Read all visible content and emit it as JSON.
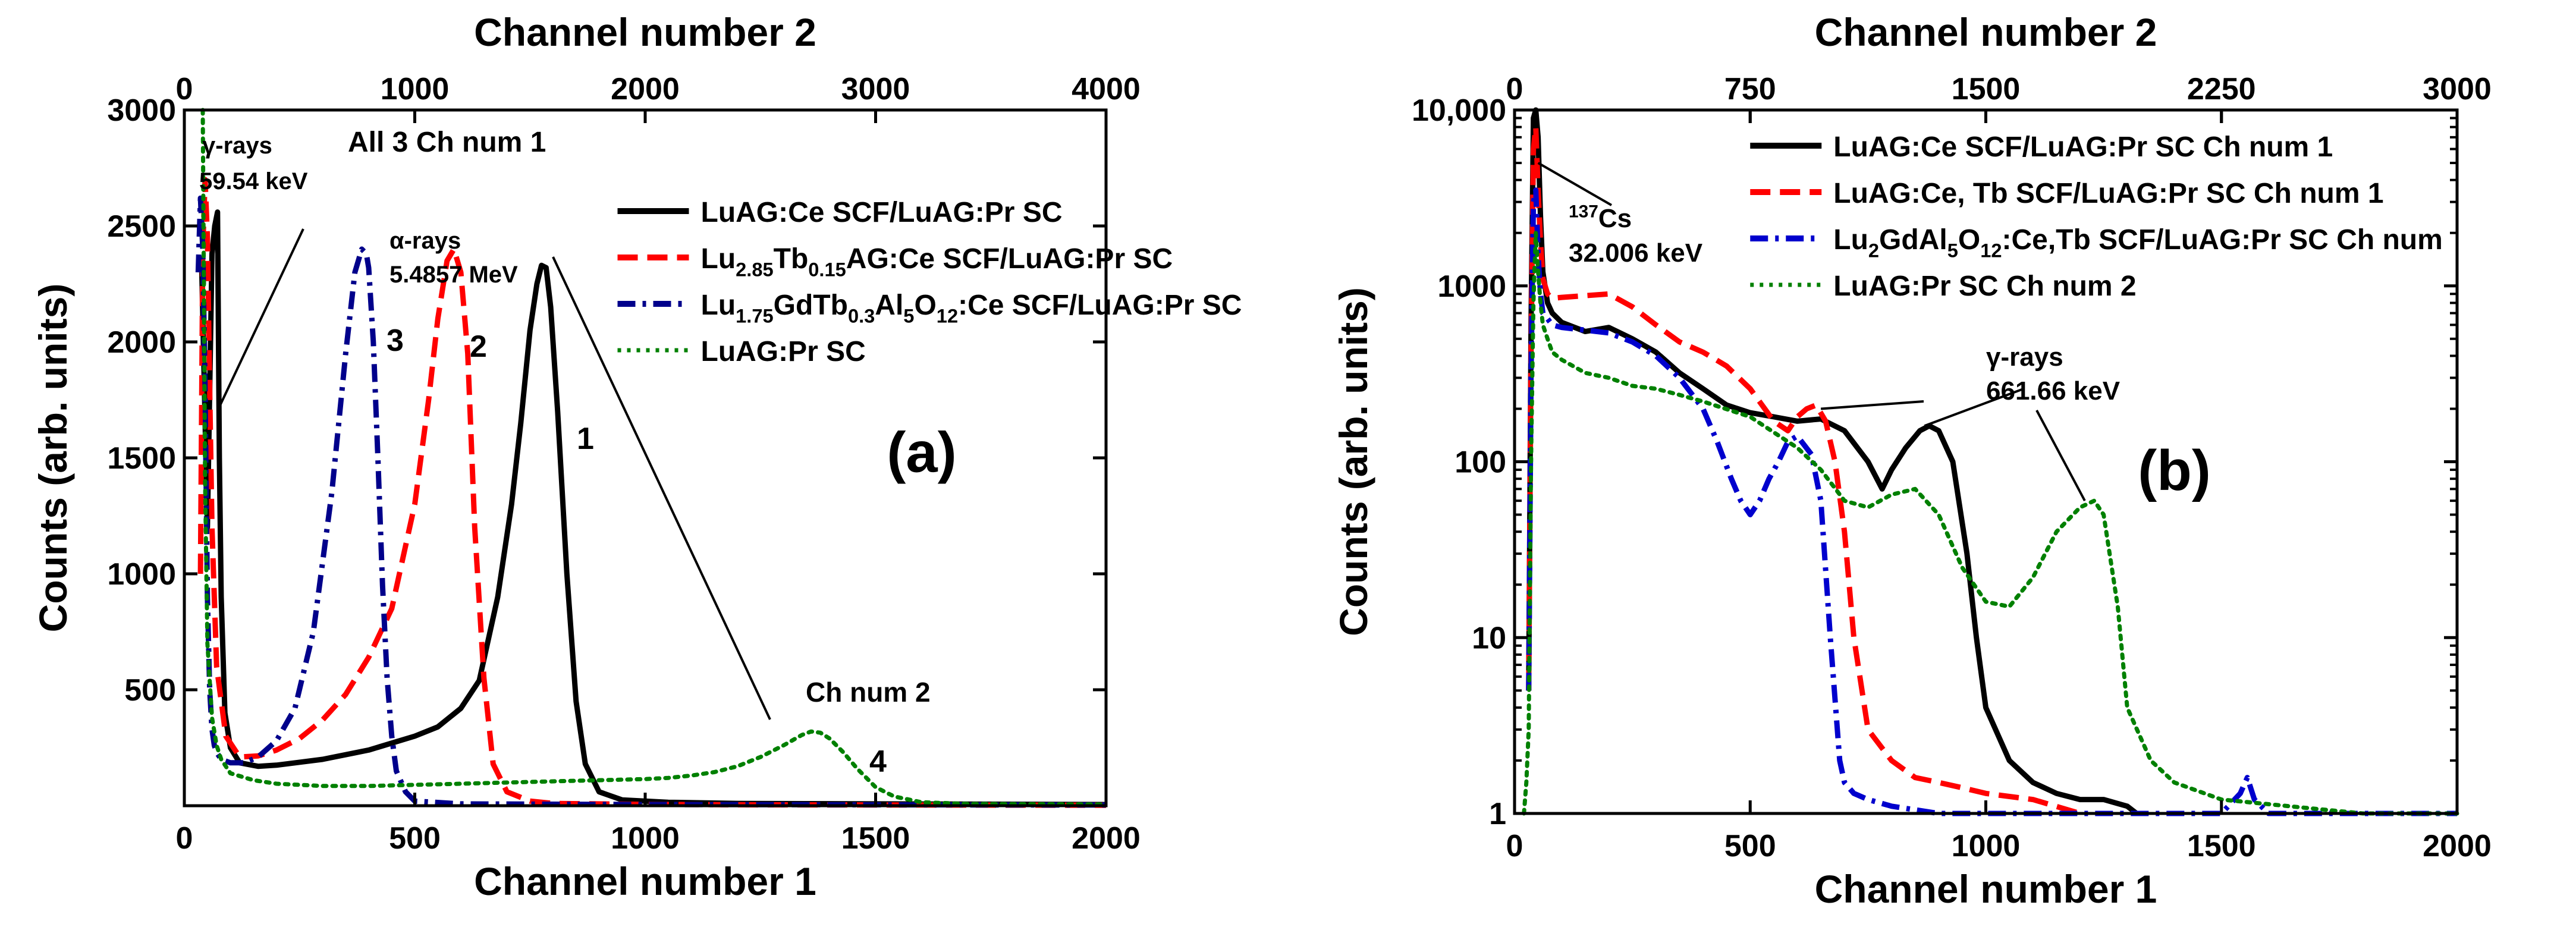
{
  "chart_data": [
    {
      "panel_label": "(a)",
      "type": "line",
      "xlabel": "Channel number 1",
      "x2label": "Channel number 2",
      "ylabel": "Counts (arb. units)",
      "xlim": [
        0,
        2000
      ],
      "x2lim": [
        0,
        4000
      ],
      "ylim": [
        0,
        3000
      ],
      "yscale": "linear",
      "x_ticks": [
        "0",
        "500",
        "1000",
        "1500",
        "2000"
      ],
      "x2_ticks": [
        "0",
        "1000",
        "2000",
        "3000",
        "4000"
      ],
      "y_ticks": [
        "500",
        "1000",
        "1500",
        "2000",
        "2500",
        "3000"
      ],
      "grid": false,
      "legend_position": "top-right",
      "header_text": "All 3 Ch num 1",
      "annotations": {
        "gamma": [
          "γ-rays",
          "59.54 keV"
        ],
        "alpha": [
          "α-rays",
          "5.4857 MeV"
        ],
        "ch2": "Ch num 2",
        "curve_numbers": [
          "1",
          "2",
          "3",
          "4"
        ]
      },
      "series": [
        {
          "name": "LuAG:Ce SCF/LuAG:Pr SC",
          "color": "#000000",
          "style": "solid",
          "curve_number": "1",
          "x": [
            38,
            50,
            60,
            66,
            72,
            76,
            80,
            88,
            100,
            120,
            160,
            200,
            300,
            400,
            500,
            550,
            600,
            640,
            680,
            710,
            730,
            750,
            765,
            775,
            785,
            795,
            810,
            830,
            850,
            870,
            900,
            950,
            1050,
            1200,
            1500,
            2000
          ],
          "y": [
            2300,
            1200,
            2380,
            2500,
            2560,
            1500,
            900,
            400,
            250,
            185,
            170,
            175,
            200,
            240,
            300,
            340,
            420,
            540,
            900,
            1300,
            1650,
            2050,
            2250,
            2330,
            2320,
            2150,
            1700,
            1000,
            450,
            180,
            60,
            25,
            15,
            10,
            8,
            5
          ]
        },
        {
          "name_parts": {
            "pre": "Lu",
            "sub1": "2.85",
            "mid1": "Tb",
            "sub2": "0.15",
            "post": "AG:Ce SCF/LuAG:Pr SC"
          },
          "color": "#ff0000",
          "style": "dash",
          "curve_number": "2",
          "x": [
            35,
            40,
            45,
            50,
            55,
            60,
            70,
            90,
            120,
            160,
            200,
            250,
            300,
            350,
            400,
            450,
            500,
            530,
            550,
            570,
            585,
            600,
            615,
            630,
            650,
            670,
            700,
            750,
            800,
            1000,
            1200,
            1600,
            2000
          ],
          "y": [
            1000,
            2400,
            2700,
            2450,
            1800,
            1200,
            600,
            300,
            210,
            215,
            240,
            290,
            370,
            480,
            640,
            850,
            1300,
            1750,
            2100,
            2350,
            2400,
            2300,
            1950,
            1200,
            550,
            180,
            60,
            20,
            10,
            6,
            4,
            3,
            2
          ]
        },
        {
          "name_parts": {
            "pre": "Lu",
            "sub1": "1.75",
            "mid1": "GdTb",
            "sub2": "0.3",
            "mid2": "Al",
            "sub3": "5",
            "mid3": "O",
            "sub4": "12",
            "post": ":Ce SCF/LuAG:Pr SC"
          },
          "color": "#00008b",
          "style": "dashdot",
          "curve_number": "3",
          "x": [
            30,
            35,
            40,
            45,
            50,
            55,
            60,
            65,
            70,
            80,
            100,
            130,
            160,
            200,
            240,
            280,
            320,
            350,
            370,
            385,
            395,
            400,
            410,
            420,
            430,
            440,
            450,
            460,
            480,
            500,
            600,
            1000,
            2000
          ],
          "y": [
            2300,
            2620,
            2400,
            1800,
            900,
            500,
            330,
            260,
            230,
            200,
            185,
            185,
            210,
            280,
            420,
            750,
            1350,
            1950,
            2300,
            2400,
            2380,
            2320,
            2000,
            1500,
            950,
            550,
            300,
            150,
            60,
            20,
            8,
            5,
            3
          ]
        },
        {
          "name": "LuAG:Pr SC",
          "color": "#008000",
          "style": "dot",
          "curve_number": "4",
          "x": [
            40,
            45,
            50,
            60,
            70,
            80,
            100,
            150,
            200,
            300,
            400,
            500,
            600,
            700,
            800,
            900,
            1000,
            1050,
            1100,
            1150,
            1200,
            1250,
            1300,
            1340,
            1360,
            1380,
            1400,
            1430,
            1460,
            1500,
            1540,
            1600,
            1700,
            2000
          ],
          "y": [
            3000,
            1400,
            700,
            380,
            260,
            200,
            140,
            110,
            95,
            85,
            85,
            90,
            95,
            100,
            105,
            110,
            115,
            120,
            130,
            145,
            170,
            210,
            260,
            305,
            320,
            315,
            290,
            230,
            160,
            80,
            40,
            15,
            8,
            5
          ]
        }
      ]
    },
    {
      "panel_label": "(b)",
      "type": "line",
      "xlabel": "Channel number 1",
      "x2label": "Channel number 2",
      "ylabel": "Counts (arb. units)",
      "xlim": [
        0,
        2000
      ],
      "x2lim": [
        0,
        3000
      ],
      "ylim": [
        1,
        10000
      ],
      "yscale": "log",
      "x_ticks": [
        "0",
        "500",
        "1000",
        "1500",
        "2000"
      ],
      "x2_ticks": [
        "0",
        "750",
        "1500",
        "2250",
        "3000"
      ],
      "y_ticks": [
        "1",
        "10",
        "100",
        "1000",
        "10,000"
      ],
      "grid": false,
      "legend_position": "top-right",
      "annotations": {
        "cs": {
          "superscript": "137",
          "element": "Cs",
          "energy": "32.006 keV"
        },
        "gamma": [
          "γ-rays",
          "661.66 keV"
        ]
      },
      "series": [
        {
          "name": "LuAG:Ce SCF/LuAG:Pr SC Ch num 1",
          "color": "#000000",
          "style": "solid",
          "x": [
            30,
            35,
            40,
            45,
            50,
            55,
            60,
            70,
            80,
            100,
            150,
            200,
            250,
            300,
            350,
            400,
            450,
            500,
            550,
            600,
            650,
            700,
            750,
            780,
            800,
            830,
            860,
            880,
            900,
            930,
            960,
            980,
            1000,
            1050,
            1100,
            1150,
            1200,
            1250,
            1300,
            1320
          ],
          "y": [
            5,
            600,
            9000,
            14000,
            7000,
            2500,
            1200,
            800,
            700,
            620,
            550,
            580,
            500,
            420,
            320,
            260,
            210,
            190,
            180,
            170,
            175,
            150,
            100,
            70,
            90,
            120,
            150,
            160,
            150,
            100,
            30,
            10,
            4,
            2,
            1.5,
            1.3,
            1.2,
            1.2,
            1.1,
            1
          ]
        },
        {
          "name": "LuAG:Ce, Tb SCF/LuAG:Pr SC Ch num 1",
          "color": "#ff0000",
          "style": "dash",
          "x": [
            30,
            35,
            40,
            45,
            50,
            55,
            60,
            70,
            80,
            100,
            150,
            200,
            250,
            300,
            350,
            400,
            450,
            500,
            550,
            580,
            600,
            620,
            640,
            660,
            680,
            700,
            720,
            750,
            800,
            850,
            900,
            950,
            1000,
            1100,
            1200
          ],
          "y": [
            5,
            400,
            6000,
            8000,
            3500,
            1800,
            1100,
            900,
            850,
            860,
            880,
            900,
            760,
            600,
            480,
            420,
            350,
            260,
            170,
            150,
            180,
            200,
            210,
            170,
            100,
            40,
            10,
            3,
            2,
            1.6,
            1.5,
            1.4,
            1.3,
            1.2,
            1
          ]
        },
        {
          "name_parts": {
            "pre": "Lu",
            "sub1": "2",
            "mid1": "GdAl",
            "sub2": "5",
            "mid2": "O",
            "sub3": "12",
            "post": ":Ce,Tb SCF/LuAG:Pr SC Ch num"
          },
          "color": "#0000cd",
          "style": "dashdot",
          "x": [
            30,
            35,
            40,
            45,
            50,
            55,
            60,
            70,
            80,
            100,
            150,
            200,
            250,
            300,
            350,
            400,
            430,
            460,
            480,
            500,
            520,
            540,
            560,
            580,
            600,
            630,
            650,
            670,
            690,
            700,
            720,
            750,
            800,
            900,
            1000,
            1100,
            1200,
            1300,
            1400,
            1500,
            1540,
            1555,
            1570,
            1600,
            1800,
            2000
          ],
          "y": [
            5,
            300,
            3000,
            3500,
            1500,
            900,
            700,
            650,
            600,
            580,
            560,
            540,
            480,
            400,
            300,
            200,
            130,
            80,
            60,
            50,
            60,
            80,
            100,
            130,
            140,
            110,
            60,
            10,
            2,
            1.5,
            1.3,
            1.2,
            1.1,
            1,
            1,
            1,
            1,
            1,
            1,
            1,
            1.3,
            1.6,
            1.2,
            1,
            1,
            1
          ]
        },
        {
          "name": "LuAG:Pr SC Ch num 2",
          "color": "#008000",
          "style": "dot",
          "x": [
            20,
            25,
            30,
            35,
            40,
            45,
            50,
            55,
            60,
            70,
            80,
            100,
            150,
            200,
            250,
            300,
            350,
            400,
            500,
            600,
            650,
            700,
            750,
            800,
            850,
            900,
            950,
            1000,
            1050,
            1100,
            1150,
            1200,
            1230,
            1250,
            1280,
            1300,
            1350,
            1400,
            1500,
            1800,
            2000
          ],
          "y": [
            1,
            1.5,
            3,
            100,
            800,
            2000,
            1200,
            800,
            600,
            500,
            420,
            380,
            320,
            300,
            270,
            260,
            240,
            220,
            180,
            120,
            90,
            60,
            55,
            65,
            70,
            50,
            25,
            16,
            15,
            22,
            40,
            55,
            60,
            50,
            15,
            4,
            2,
            1.5,
            1.2,
            1,
            1
          ]
        }
      ]
    }
  ]
}
